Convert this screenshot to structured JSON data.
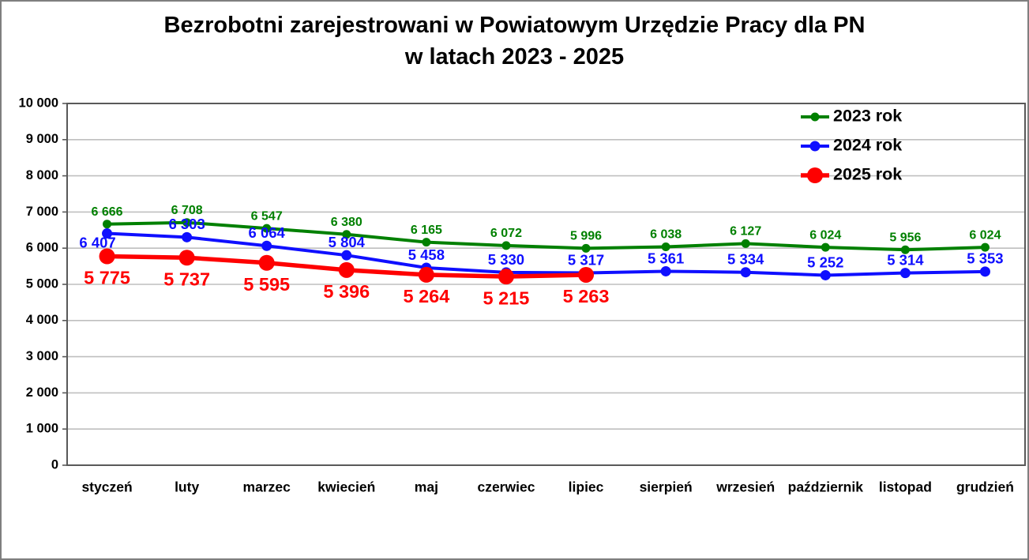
{
  "page": {
    "background": "#ffffff",
    "border_color": "#7f7f7f"
  },
  "chart_data": {
    "type": "line",
    "title": "Bezrobotni zarejestrowani w Powiatowym Urzędzie Pracy dla PN w latach 2023 - 2025",
    "title_lines": [
      "Bezrobotni zarejestrowani w Powiatowym Urzędzie Pracy dla PN",
      "w latach 2023 - 2025"
    ],
    "categories": [
      "styczeń",
      "luty",
      "marzec",
      "kwiecień",
      "maj",
      "czerwiec",
      "lipiec",
      "sierpień",
      "wrzesień",
      "październik",
      "listopad",
      "grudzień"
    ],
    "series": [
      {
        "name": "2023 rok",
        "color": "#008000",
        "values": [
          6666,
          6708,
          6547,
          6380,
          6165,
          6072,
          5996,
          6038,
          6127,
          6024,
          5956,
          6024
        ]
      },
      {
        "name": "2024 rok",
        "color": "#0f0fff",
        "values": [
          6407,
          6303,
          6064,
          5804,
          5458,
          5330,
          5317,
          5361,
          5334,
          5252,
          5314,
          5353
        ]
      },
      {
        "name": "2025 rok",
        "color": "#fe0000",
        "values": [
          5775,
          5737,
          5595,
          5396,
          5264,
          5215,
          5263
        ]
      }
    ],
    "xlabel": "",
    "ylabel": "",
    "ylim": [
      0,
      10000
    ],
    "ytick_step": 1000,
    "ytick_labels": [
      "0",
      "1 000",
      "2 000",
      "3 000",
      "4 000",
      "5 000",
      "6 000",
      "7 000",
      "8 000",
      "9 000",
      "10 000"
    ],
    "grid": true,
    "gridline_color": "#bfbfbf",
    "plot_border_color": "#595959",
    "axis_text_color": "#000000",
    "legend_position": "top-right",
    "legend_entries": [
      "2023 rok",
      "2024 rok",
      "2025 rok"
    ],
    "data_labels_visible": true,
    "number_format": "space-thousands"
  }
}
